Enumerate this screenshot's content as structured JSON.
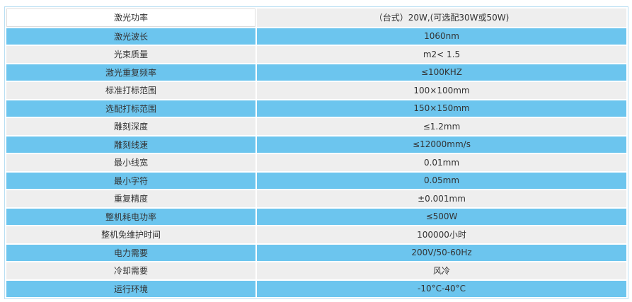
{
  "table": {
    "rows": [
      [
        "激光功率",
        "（台式）20W,(可选配30W或50W)"
      ],
      [
        "激光波长",
        "1060nm"
      ],
      [
        "光束质量",
        "m2< 1.5"
      ],
      [
        "激光重复频率",
        "≤100KHZ"
      ],
      [
        "标准打标范围",
        "100×100mm"
      ],
      [
        "选配打标范围",
        "150×150mm"
      ],
      [
        "雕刻深度",
        "≤1.2mm"
      ],
      [
        "雕刻线速",
        "≤12000mm/s"
      ],
      [
        "最小线宽",
        "0.01mm"
      ],
      [
        "最小字符",
        "0.05mm"
      ],
      [
        "重复精度",
        "±0.001mm"
      ],
      [
        "整机耗电功率",
        "≤500W"
      ],
      [
        "整机免维护时间",
        "100000小时"
      ],
      [
        "电力需要",
        "200V/50-60Hz"
      ],
      [
        "冷却需要",
        "风冷"
      ],
      [
        "运行环境",
        "-10°C-40°C"
      ]
    ]
  }
}
